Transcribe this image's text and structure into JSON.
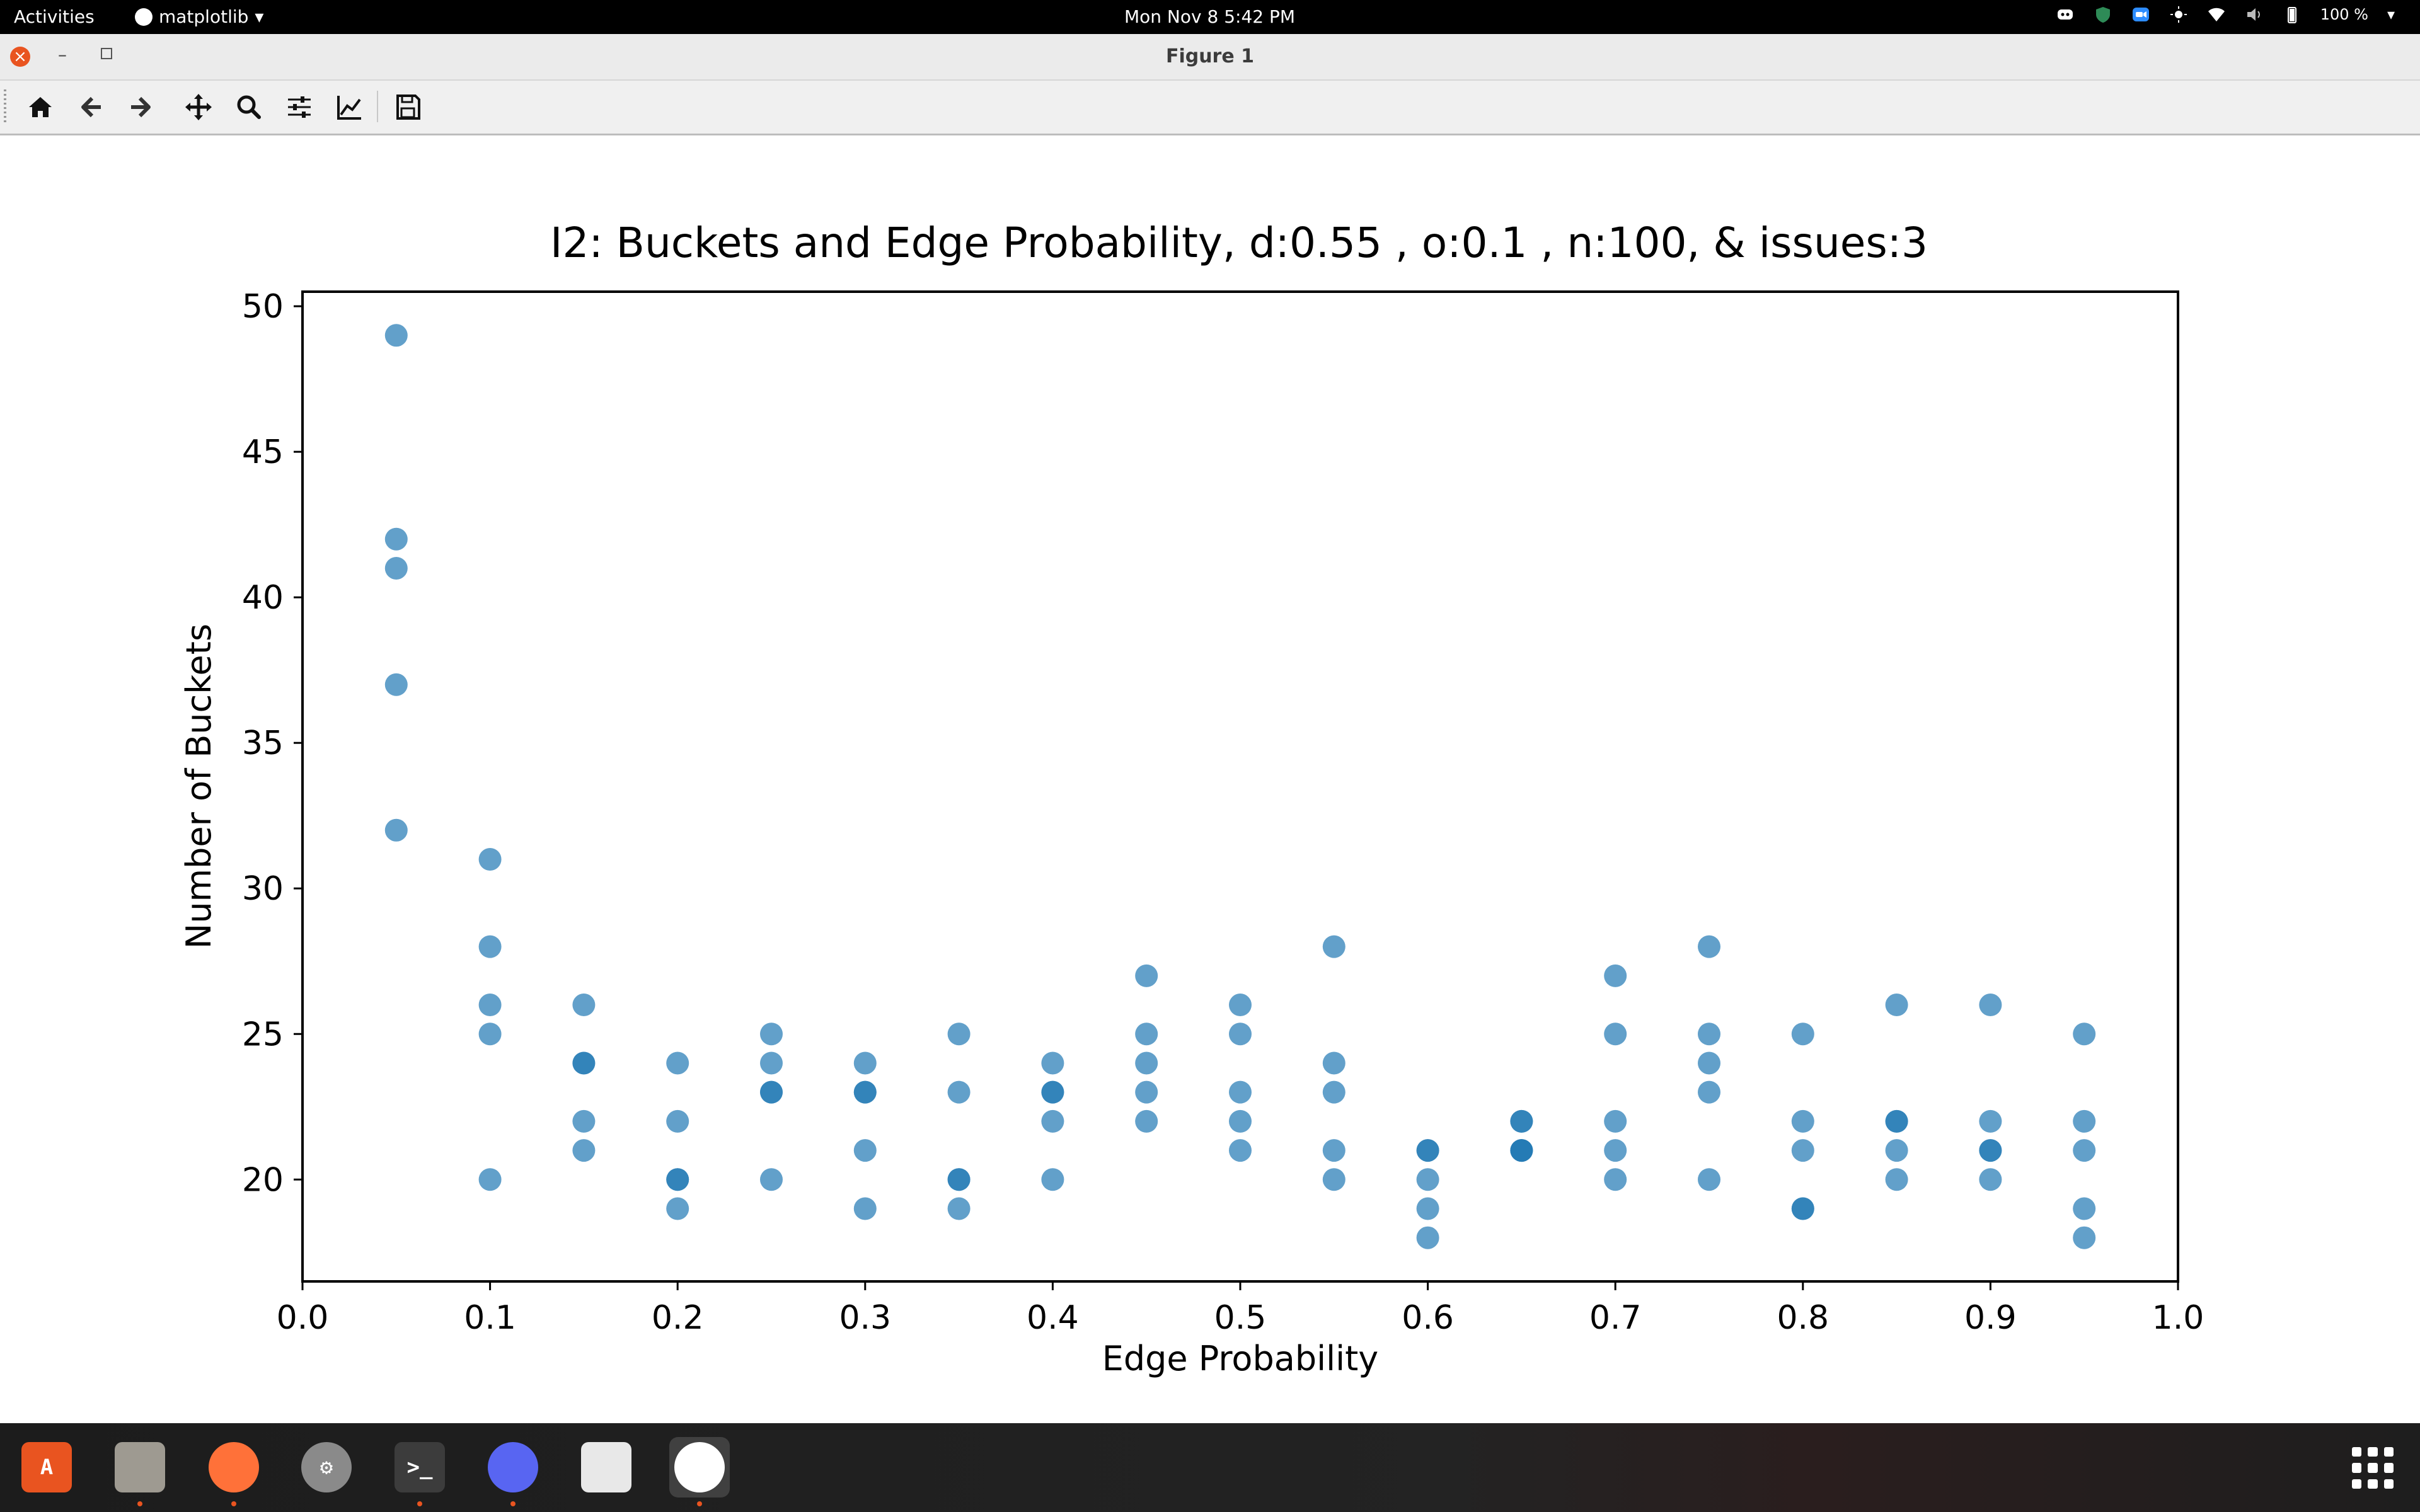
{
  "topbar": {
    "activities": "Activities",
    "app_name": "matplotlib",
    "clock": "Mon Nov 8  5:42 PM",
    "battery": "100 %",
    "tray_icons": [
      "discord-tray-icon",
      "shield-tray-icon",
      "zoom-tray-icon",
      "brightness-icon",
      "wifi-icon",
      "volume-icon",
      "battery-icon"
    ]
  },
  "window": {
    "title": "Figure 1",
    "close_glyph": "×",
    "minimize_glyph": "–"
  },
  "toolbar": {
    "buttons": [
      "home-icon",
      "back-arrow-icon",
      "forward-arrow-icon",
      "pan-icon",
      "zoom-icon",
      "configure-subplots-icon",
      "edit-axis-icon",
      "save-icon"
    ]
  },
  "chart_data": {
    "type": "scatter",
    "title": "I2: Buckets and Edge Probability, d:0.55 , o:0.1 , n:100, & issues:3",
    "xlabel": "Edge Probability",
    "ylabel": "Number of Buckets",
    "xlim": [
      0.0,
      1.0
    ],
    "ylim": [
      16.5,
      50.5
    ],
    "xticks": [
      "0.0",
      "0.1",
      "0.2",
      "0.3",
      "0.4",
      "0.5",
      "0.6",
      "0.7",
      "0.8",
      "0.9",
      "1.0"
    ],
    "yticks": [
      "20",
      "25",
      "30",
      "35",
      "40",
      "45",
      "50"
    ],
    "marker_color": "#1f77b4",
    "grid": false,
    "points": [
      [
        0.05,
        49
      ],
      [
        0.05,
        42
      ],
      [
        0.05,
        41
      ],
      [
        0.05,
        37
      ],
      [
        0.05,
        32
      ],
      [
        0.1,
        31
      ],
      [
        0.1,
        28
      ],
      [
        0.1,
        26
      ],
      [
        0.1,
        25
      ],
      [
        0.1,
        20
      ],
      [
        0.15,
        26
      ],
      [
        0.15,
        24
      ],
      [
        0.15,
        24
      ],
      [
        0.15,
        22
      ],
      [
        0.15,
        21
      ],
      [
        0.2,
        24
      ],
      [
        0.2,
        22
      ],
      [
        0.2,
        20
      ],
      [
        0.2,
        20
      ],
      [
        0.2,
        19
      ],
      [
        0.25,
        25
      ],
      [
        0.25,
        24
      ],
      [
        0.25,
        23
      ],
      [
        0.25,
        23
      ],
      [
        0.25,
        20
      ],
      [
        0.3,
        24
      ],
      [
        0.3,
        23
      ],
      [
        0.3,
        23
      ],
      [
        0.3,
        21
      ],
      [
        0.3,
        19
      ],
      [
        0.35,
        25
      ],
      [
        0.35,
        23
      ],
      [
        0.35,
        20
      ],
      [
        0.35,
        20
      ],
      [
        0.35,
        19
      ],
      [
        0.4,
        24
      ],
      [
        0.4,
        23
      ],
      [
        0.4,
        23
      ],
      [
        0.4,
        22
      ],
      [
        0.4,
        20
      ],
      [
        0.45,
        27
      ],
      [
        0.45,
        25
      ],
      [
        0.45,
        24
      ],
      [
        0.45,
        23
      ],
      [
        0.45,
        22
      ],
      [
        0.5,
        26
      ],
      [
        0.5,
        25
      ],
      [
        0.5,
        23
      ],
      [
        0.5,
        22
      ],
      [
        0.5,
        21
      ],
      [
        0.55,
        28
      ],
      [
        0.55,
        24
      ],
      [
        0.55,
        23
      ],
      [
        0.55,
        21
      ],
      [
        0.55,
        20
      ],
      [
        0.6,
        21
      ],
      [
        0.6,
        21
      ],
      [
        0.6,
        20
      ],
      [
        0.6,
        19
      ],
      [
        0.6,
        18
      ],
      [
        0.65,
        22
      ],
      [
        0.65,
        22
      ],
      [
        0.65,
        21
      ],
      [
        0.65,
        21
      ],
      [
        0.65,
        21
      ],
      [
        0.7,
        27
      ],
      [
        0.7,
        25
      ],
      [
        0.7,
        22
      ],
      [
        0.7,
        21
      ],
      [
        0.7,
        20
      ],
      [
        0.75,
        28
      ],
      [
        0.75,
        25
      ],
      [
        0.75,
        24
      ],
      [
        0.75,
        23
      ],
      [
        0.75,
        20
      ],
      [
        0.8,
        25
      ],
      [
        0.8,
        22
      ],
      [
        0.8,
        21
      ],
      [
        0.8,
        19
      ],
      [
        0.8,
        19
      ],
      [
        0.85,
        26
      ],
      [
        0.85,
        22
      ],
      [
        0.85,
        22
      ],
      [
        0.85,
        21
      ],
      [
        0.85,
        20
      ],
      [
        0.9,
        26
      ],
      [
        0.9,
        22
      ],
      [
        0.9,
        21
      ],
      [
        0.9,
        21
      ],
      [
        0.9,
        20
      ],
      [
        0.95,
        25
      ],
      [
        0.95,
        22
      ],
      [
        0.95,
        21
      ],
      [
        0.95,
        19
      ],
      [
        0.95,
        18
      ]
    ]
  },
  "dock": {
    "items": [
      {
        "name": "software-center-icon",
        "color": "#e95420",
        "glyph": "A",
        "running": false
      },
      {
        "name": "files-icon",
        "color": "#9e9a91",
        "glyph": "",
        "running": true
      },
      {
        "name": "firefox-icon",
        "color": "#ff7139",
        "glyph": "",
        "running": true
      },
      {
        "name": "settings-icon",
        "color": "#8a8a8a",
        "glyph": "⚙",
        "running": false
      },
      {
        "name": "terminal-icon",
        "color": "#3c3c3c",
        "glyph": ">_",
        "running": true
      },
      {
        "name": "discord-icon",
        "color": "#5865f2",
        "glyph": "",
        "running": true
      },
      {
        "name": "document-viewer-icon",
        "color": "#e8e8e8",
        "glyph": "",
        "running": false
      },
      {
        "name": "matplotlib-icon",
        "color": "#ffffff",
        "glyph": "",
        "running": true
      }
    ],
    "show_apps": "show-applications-icon"
  }
}
